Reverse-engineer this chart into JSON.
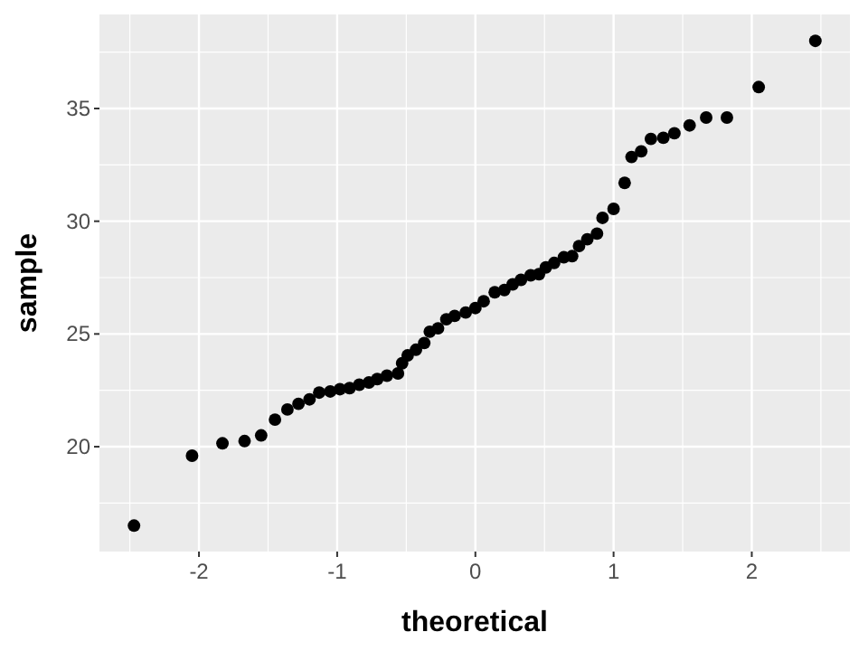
{
  "chart_data": {
    "type": "scatter",
    "xlabel": "theoretical",
    "ylabel": "sample",
    "marker": "circle",
    "grid": true,
    "xlim": [
      -2.72,
      2.71
    ],
    "ylim": [
      15.35,
      39.17
    ],
    "xticks": [
      -2,
      -1,
      0,
      1,
      2
    ],
    "yticks": [
      20,
      25,
      30,
      35
    ],
    "series": [
      {
        "color": "#000000",
        "x": [
          -2.47,
          -2.05,
          -1.83,
          -1.67,
          -1.55,
          -1.45,
          -1.36,
          -1.28,
          -1.2,
          -1.13,
          -1.05,
          -0.98,
          -0.91,
          -0.84,
          -0.77,
          -0.71,
          -0.64,
          -0.56,
          -0.53,
          -0.49,
          -0.43,
          -0.37,
          -0.33,
          -0.27,
          -0.21,
          -0.15,
          -0.07,
          0.0,
          0.06,
          0.14,
          0.21,
          0.27,
          0.33,
          0.4,
          0.46,
          0.51,
          0.57,
          0.64,
          0.7,
          0.75,
          0.81,
          0.88,
          0.92,
          1.0,
          1.08,
          1.13,
          1.2,
          1.27,
          1.36,
          1.44,
          1.55,
          1.67,
          1.82,
          2.05,
          2.46
        ],
        "values": [
          16.5,
          19.6,
          20.15,
          20.25,
          20.5,
          21.2,
          21.65,
          21.9,
          22.1,
          22.4,
          22.45,
          22.55,
          22.6,
          22.75,
          22.85,
          23.0,
          23.15,
          23.25,
          23.7,
          24.05,
          24.3,
          24.6,
          25.1,
          25.25,
          25.65,
          25.8,
          25.95,
          26.15,
          26.45,
          26.85,
          26.95,
          27.2,
          27.4,
          27.6,
          27.65,
          27.95,
          28.15,
          28.4,
          28.45,
          28.9,
          29.2,
          29.45,
          30.15,
          30.55,
          31.7,
          32.85,
          33.1,
          33.65,
          33.7,
          33.9,
          34.25,
          34.6,
          34.6,
          35.95,
          38.0
        ]
      }
    ]
  }
}
